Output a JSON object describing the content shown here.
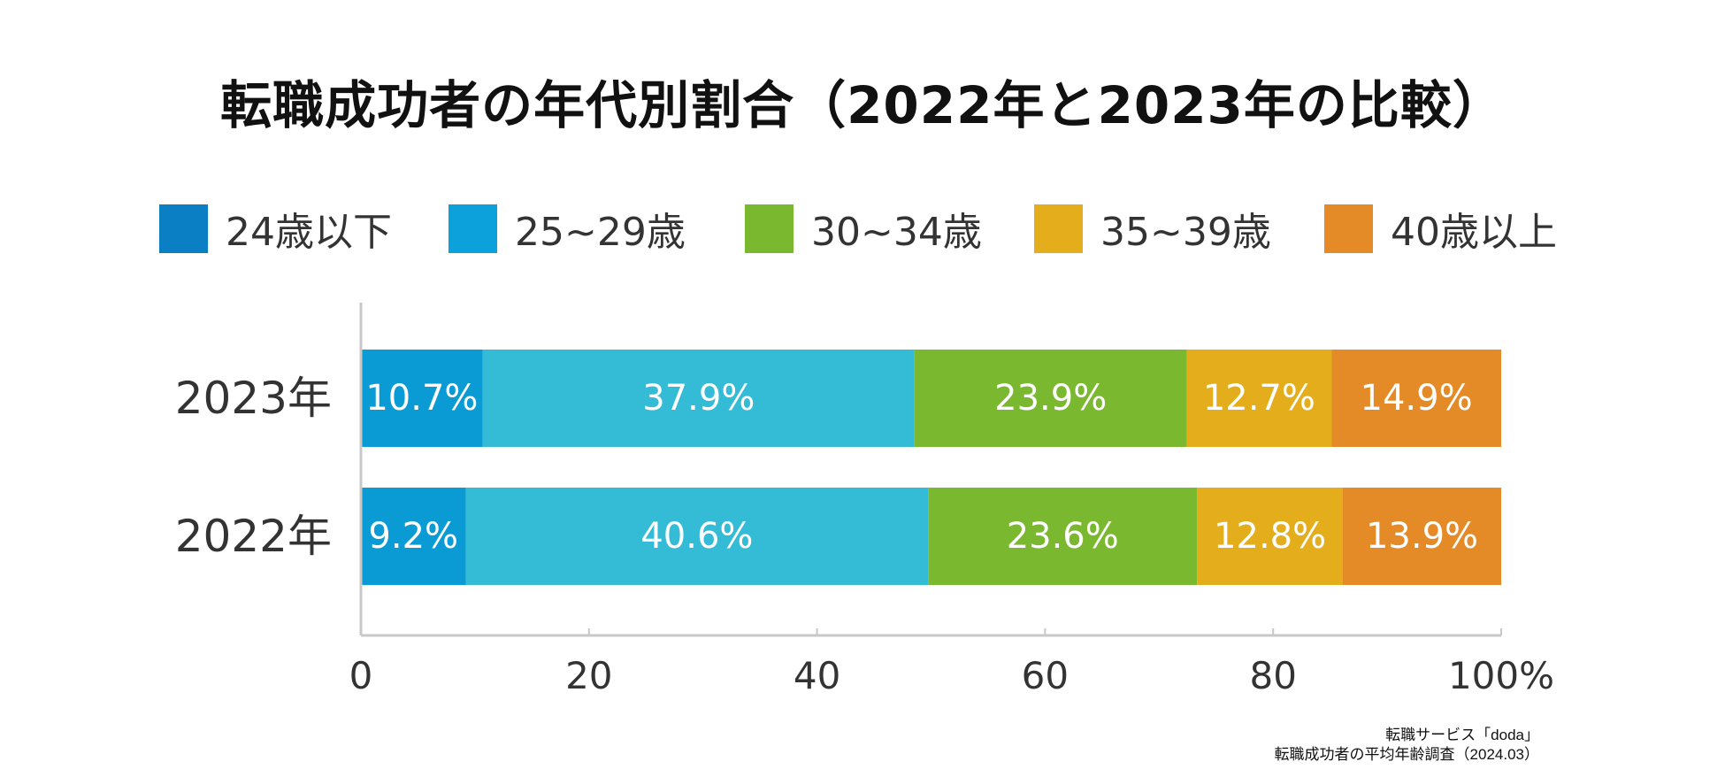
{
  "chart_data": {
    "type": "bar",
    "orientation": "horizontal",
    "stacked": true,
    "title": "転職成功者の年代別割合（2022年と2023年の比較）",
    "categories": [
      "2023年",
      "2022年"
    ],
    "series": [
      {
        "name": "24歳以下",
        "color": "#0b86c8",
        "values": [
          10.7,
          9.2
        ],
        "labels": [
          "10.7%",
          "9.2%"
        ]
      },
      {
        "name": "25~29歳",
        "color": "#34bcd6",
        "values": [
          37.9,
          40.6
        ],
        "labels": [
          "37.9%",
          "40.6%"
        ]
      },
      {
        "name": "30~34歳",
        "color": "#7ab92f",
        "values": [
          23.9,
          23.6
        ],
        "labels": [
          "23.9%",
          "23.6%"
        ]
      },
      {
        "name": "35~39歳",
        "color": "#e4ad1c",
        "values": [
          12.7,
          12.8
        ],
        "labels": [
          "12.7%",
          "12.8%"
        ]
      },
      {
        "name": "40歳以上",
        "color": "#e48a26",
        "values": [
          14.9,
          13.9
        ],
        "labels": [
          "14.9%",
          "13.9%"
        ]
      }
    ],
    "first_segment_color": "#0b9bd4",
    "legend_swatch_colors": [
      "#0b7fc4",
      "#0da1dc",
      "#7ab92f",
      "#e4ad1c",
      "#e48a26"
    ],
    "xlim": [
      0,
      100
    ],
    "xticks": [
      0,
      20,
      40,
      60,
      80,
      100
    ],
    "xtick_labels": [
      "0",
      "20",
      "40",
      "60",
      "80",
      "100%"
    ],
    "xlabel": "",
    "ylabel": "",
    "legend_position": "top",
    "grid": false
  },
  "source": {
    "line1": "転職サービス「doda」",
    "line2": "転職成功者の平均年齢調査（2024.03）"
  },
  "colors": {
    "axis": "#c8c8c8",
    "text": "#333333"
  }
}
